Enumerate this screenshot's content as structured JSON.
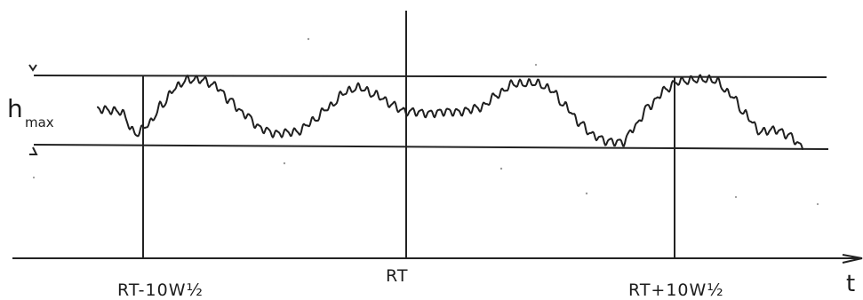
{
  "diagram": {
    "labels": {
      "left_marker": "RT-10W½",
      "center_marker": "RT",
      "right_marker": "RT+10W½",
      "amplitude_main": "h",
      "amplitude_sub": "max",
      "time_axis": "t"
    }
  }
}
